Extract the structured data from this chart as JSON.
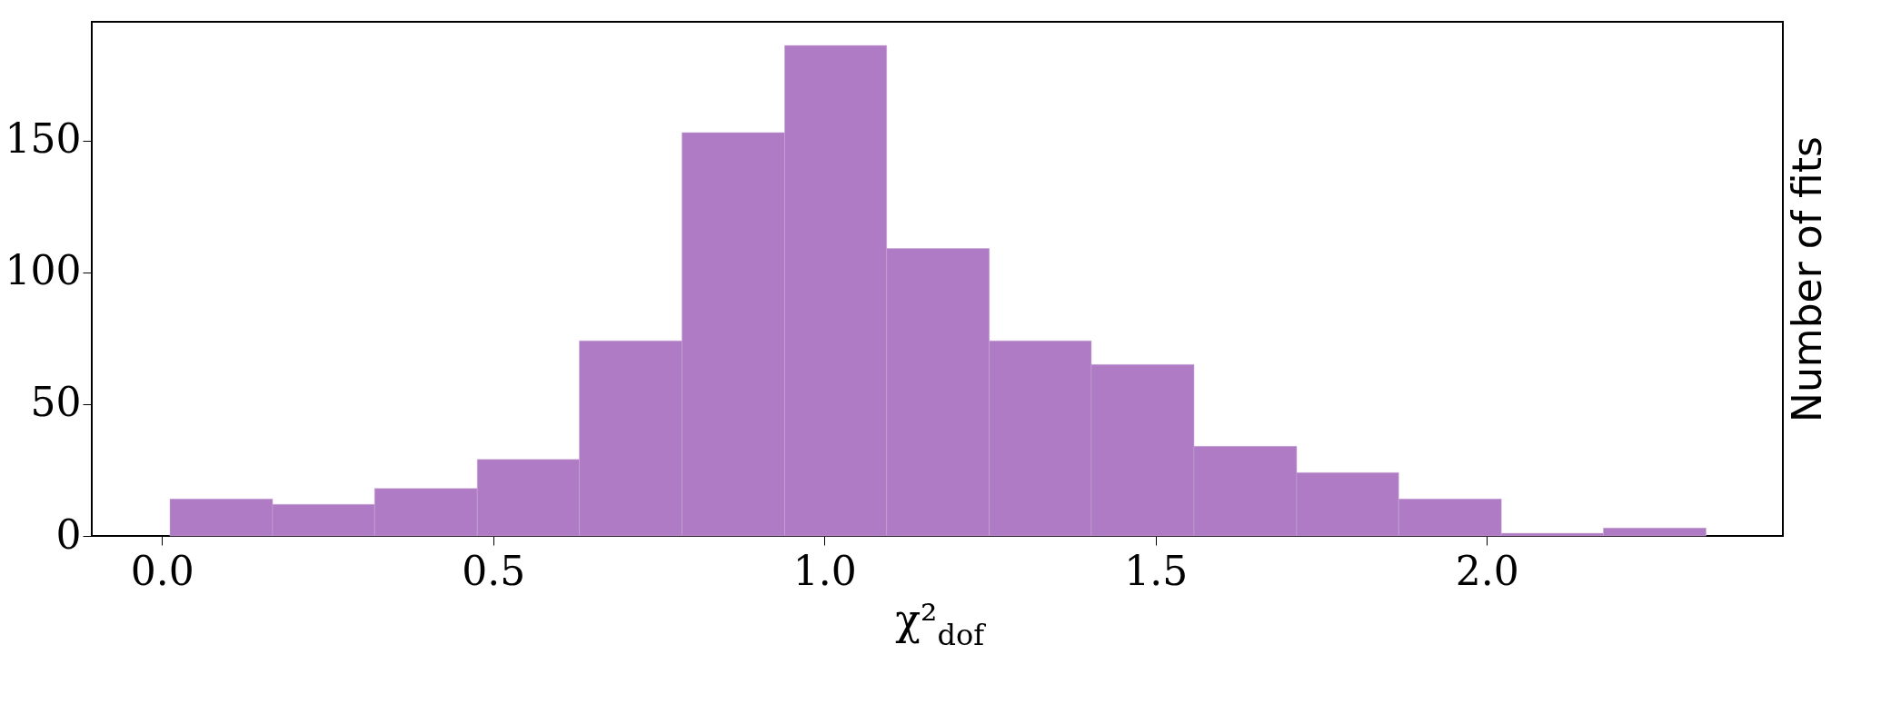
{
  "chart_data": {
    "type": "histogram",
    "xlabel": "χ²$_{dof}$",
    "ylabel": "Number of fits",
    "bins": [
      0.012,
      0.167,
      0.321,
      0.476,
      0.63,
      0.785,
      0.94,
      1.094,
      1.249,
      1.403,
      1.558,
      1.713,
      1.867,
      2.022,
      2.176,
      2.331
    ],
    "values": [
      14,
      12,
      18,
      29,
      74,
      153,
      186,
      109,
      74,
      65,
      34,
      24,
      14,
      1,
      3
    ],
    "color": "#ae7bc4",
    "xlim": [
      -0.106,
      2.447
    ],
    "ylim": [
      0,
      195
    ],
    "xticks": [
      {
        "value": 0,
        "label": "0.0"
      },
      {
        "value": 0.5,
        "label": "0.5"
      },
      {
        "value": 1,
        "label": "1.0"
      },
      {
        "value": 1.5,
        "label": "1.5"
      },
      {
        "value": 2,
        "label": "2.0"
      }
    ],
    "yticks": [
      0,
      50,
      100,
      150
    ],
    "grid": false
  }
}
